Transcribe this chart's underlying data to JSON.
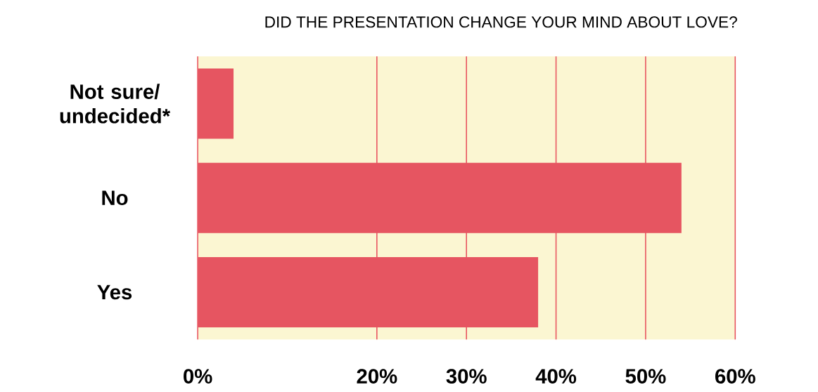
{
  "chart_data": {
    "type": "bar",
    "orientation": "horizontal",
    "title": "DID THE PRESENTATION CHANGE YOUR MIND ABOUT LOVE?",
    "categories": [
      "Not sure/ undecided*",
      "No",
      "Yes"
    ],
    "values": [
      4,
      54,
      38
    ],
    "color": "#e65561",
    "xlim": [
      0,
      60
    ],
    "xticks": [
      {
        "value": 0,
        "label": "0%"
      },
      {
        "value": 20,
        "label": "20%"
      },
      {
        "value": 30,
        "label": "30%"
      },
      {
        "value": 40,
        "label": "40%"
      },
      {
        "value": 50,
        "label": "50%"
      },
      {
        "value": 60,
        "label": "60%"
      }
    ],
    "grid": "x"
  }
}
